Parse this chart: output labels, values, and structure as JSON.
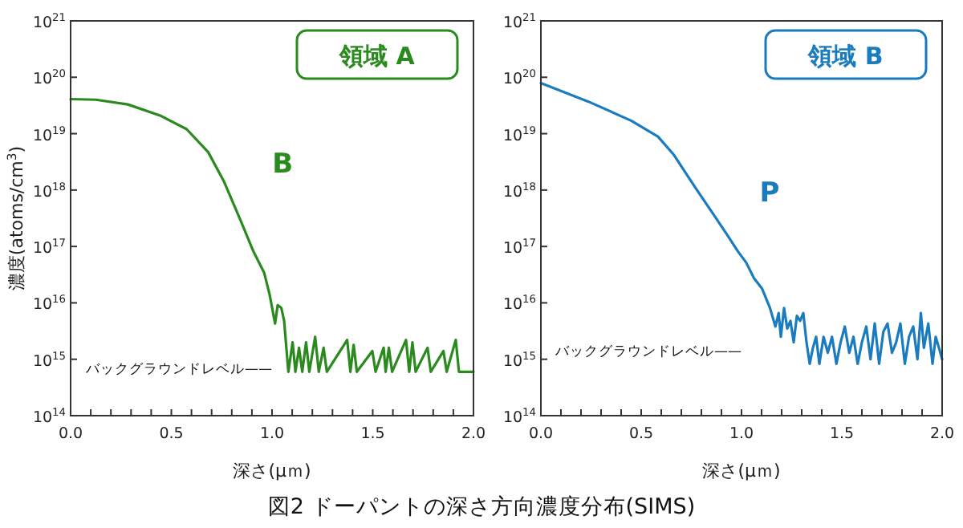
{
  "chart_data": [
    {
      "type": "line",
      "title": "領域 A",
      "xlabel": "深さ(μｍ)",
      "ylabel": "濃度(atoms/cm$^{3}$)",
      "log": "y",
      "xlim": [
        0,
        2
      ],
      "ylim": [
        100000000000000.0,
        1e+21
      ],
      "xticks": [
        {
          "value": 0,
          "label": "0.0"
        },
        {
          "value": 0.1,
          "label": null
        },
        {
          "value": 0.2,
          "label": null
        },
        {
          "value": 0.3,
          "label": null
        },
        {
          "value": 0.4,
          "label": null
        },
        {
          "value": 0.5,
          "label": "0.5"
        },
        {
          "value": 0.6,
          "label": null
        },
        {
          "value": 0.7,
          "label": null
        },
        {
          "value": 0.8,
          "label": null
        },
        {
          "value": 0.9,
          "label": null
        },
        {
          "value": 1,
          "label": "1.0"
        },
        {
          "value": 1.1,
          "label": null
        },
        {
          "value": 1.2,
          "label": null
        },
        {
          "value": 1.3,
          "label": null
        },
        {
          "value": 1.4,
          "label": null
        },
        {
          "value": 1.5,
          "label": "1.5"
        },
        {
          "value": 1.6,
          "label": null
        },
        {
          "value": 1.7,
          "label": null
        },
        {
          "value": 1.8,
          "label": null
        },
        {
          "value": 1.9,
          "label": null
        },
        {
          "value": 2,
          "label": "2.0"
        }
      ],
      "yticks": [
        {
          "value": 100000000000000.0,
          "label": "10$^{14}$"
        },
        {
          "value": 1000000000000000.0,
          "label": "10$^{15}$"
        },
        {
          "value": 1e+16,
          "label": "10$^{16}$"
        },
        {
          "value": 1e+17,
          "label": "10$^{17}$"
        },
        {
          "value": 1e+18,
          "label": "10$^{18}$"
        },
        {
          "value": 1e+19,
          "label": "10$^{19}$"
        },
        {
          "value": 1e+20,
          "label": "10$^{20}$"
        },
        {
          "value": 1e+21,
          "label": "10$^{21}$"
        }
      ],
      "series": [
        {
          "name": "B",
          "color": "#2a8a1e",
          "x": [
            0,
            0.125,
            0.284,
            0.444,
            0.576,
            0.683,
            0.762,
            0.842,
            0.908,
            0.961,
            0.988,
            1.015,
            1.028,
            1.046,
            1.06,
            1.081,
            1.102,
            1.116,
            1.134,
            1.15,
            1.169,
            1.185,
            1.214,
            1.232,
            1.256,
            1.272,
            1.373,
            1.389,
            1.405,
            1.421,
            1.498,
            1.514,
            1.554,
            1.564,
            1.58,
            1.596,
            1.665,
            1.681,
            1.697,
            1.713,
            1.772,
            1.788,
            1.851,
            1.867,
            1.912,
            1.928,
            2.0
          ],
          "values": [
            4.1e+19,
            4e+19,
            3.3e+19,
            2.1e+19,
            1.2e+19,
            4.7e+18,
            1.4e+18,
            3e+17,
            8.1e+16,
            3.4e+16,
            1.4e+16,
            4300000000000000.0,
            9100000000000000.0,
            8100000000000000.0,
            4800000000000000.0,
            600000000000000.0,
            2000000000000000.0,
            600000000000000.0,
            1600000000000000.0,
            600000000000000.0,
            2000000000000000.0,
            600000000000000.0,
            2500000000000000.0,
            600000000000000.0,
            1600000000000000.0,
            600000000000000.0,
            2200000000000000.0,
            600000000000000.0,
            1800000000000000.0,
            600000000000000.0,
            1400000000000000.0,
            600000000000000.0,
            1600000000000000.0,
            600000000000000.0,
            1600000000000000.0,
            600000000000000.0,
            2200000000000000.0,
            600000000000000.0,
            2000000000000000.0,
            600000000000000.0,
            1600000000000000.0,
            600000000000000.0,
            1400000000000000.0,
            600000000000000.0,
            2200000000000000.0,
            600000000000000.0,
            600000000000000.0
          ]
        }
      ],
      "annotations": [
        "バックグラウンドレベル——",
        "図2 ドーパントの深さ方向濃度分布(SIMS)"
      ]
    },
    {
      "type": "line",
      "title": "領域 B",
      "xlabel": "深さ(μｍ)",
      "log": "y",
      "xlim": [
        0,
        2
      ],
      "ylim": [
        100000000000000.0,
        1e+21
      ],
      "xticks": [
        {
          "value": 0,
          "label": "0.0"
        },
        {
          "value": 0.1,
          "label": null
        },
        {
          "value": 0.2,
          "label": null
        },
        {
          "value": 0.3,
          "label": null
        },
        {
          "value": 0.4,
          "label": null
        },
        {
          "value": 0.5,
          "label": "0.5"
        },
        {
          "value": 0.6,
          "label": null
        },
        {
          "value": 0.7,
          "label": null
        },
        {
          "value": 0.8,
          "label": null
        },
        {
          "value": 0.9,
          "label": null
        },
        {
          "value": 1,
          "label": "1.0"
        },
        {
          "value": 1.1,
          "label": null
        },
        {
          "value": 1.2,
          "label": null
        },
        {
          "value": 1.3,
          "label": null
        },
        {
          "value": 1.4,
          "label": null
        },
        {
          "value": 1.5,
          "label": "1.5"
        },
        {
          "value": 1.6,
          "label": null
        },
        {
          "value": 1.7,
          "label": null
        },
        {
          "value": 1.8,
          "label": null
        },
        {
          "value": 1.9,
          "label": null
        },
        {
          "value": 2,
          "label": "2.0"
        }
      ],
      "yticks": [
        {
          "value": 100000000000000.0,
          "label": "10$^{14}$"
        },
        {
          "value": 1000000000000000.0,
          "label": "10$^{15}$"
        },
        {
          "value": 1e+16,
          "label": "10$^{16}$"
        },
        {
          "value": 1e+17,
          "label": "10$^{17}$"
        },
        {
          "value": 1e+18,
          "label": "10$^{18}$"
        },
        {
          "value": 1e+19,
          "label": "10$^{19}$"
        },
        {
          "value": 1e+20,
          "label": "10$^{20}$"
        },
        {
          "value": 1e+21,
          "label": "10$^{21}$"
        }
      ],
      "series": [
        {
          "name": "P",
          "color": "#1a7bbf",
          "x": [
            0,
            0.237,
            0.45,
            0.583,
            0.663,
            0.77,
            0.85,
            0.929,
            0.983,
            1.023,
            1.063,
            1.102,
            1.142,
            1.169,
            1.185,
            1.196,
            1.212,
            1.228,
            1.244,
            1.26,
            1.276,
            1.292,
            1.308,
            1.324,
            1.34,
            1.356,
            1.372,
            1.388,
            1.409,
            1.43,
            1.451,
            1.473,
            1.494,
            1.515,
            1.537,
            1.558,
            1.579,
            1.6,
            1.622,
            1.643,
            1.664,
            1.686,
            1.707,
            1.728,
            1.75,
            1.771,
            1.792,
            1.814,
            1.835,
            1.856,
            1.877,
            1.894,
            1.909,
            1.931,
            1.952,
            1.968,
            1.984,
            2.0
          ],
          "values": [
            7.9e+19,
            3.7e+19,
            1.7e+19,
            8.9e+18,
            4.2e+18,
            1.1e+18,
            4.2e+17,
            1.6e+17,
            8.1e+16,
            5.2e+16,
            2.7e+16,
            1.8e+16,
            8100000000000000.0,
            3800000000000000.0,
            6600000000000000.0,
            2500000000000000.0,
            8100000000000000.0,
            3500000000000000.0,
            4800000000000000.0,
            2000000000000000.0,
            5900000000000000.0,
            4800000000000000.0,
            6600000000000000.0,
            2000000000000000.0,
            830000000000000.0,
            1600000000000000.0,
            2500000000000000.0,
            830000000000000.0,
            2500000000000000.0,
            1300000000000000.0,
            2500000000000000.0,
            830000000000000.0,
            2000000000000000.0,
            3800000000000000.0,
            1300000000000000.0,
            2500000000000000.0,
            830000000000000.0,
            2000000000000000.0,
            3800000000000000.0,
            1000000000000000.0,
            4300000000000000.0,
            830000000000000.0,
            3100000000000000.0,
            4300000000000000.0,
            1300000000000000.0,
            2000000000000000.0,
            4300000000000000.0,
            830000000000000.0,
            2500000000000000.0,
            3800000000000000.0,
            1000000000000000.0,
            6600000000000000.0,
            1600000000000000.0,
            4300000000000000.0,
            830000000000000.0,
            2500000000000000.0,
            1600000000000000.0,
            1000000000000000.0
          ]
        }
      ],
      "annotations": [
        "バックグラウンドレベル——"
      ]
    }
  ]
}
